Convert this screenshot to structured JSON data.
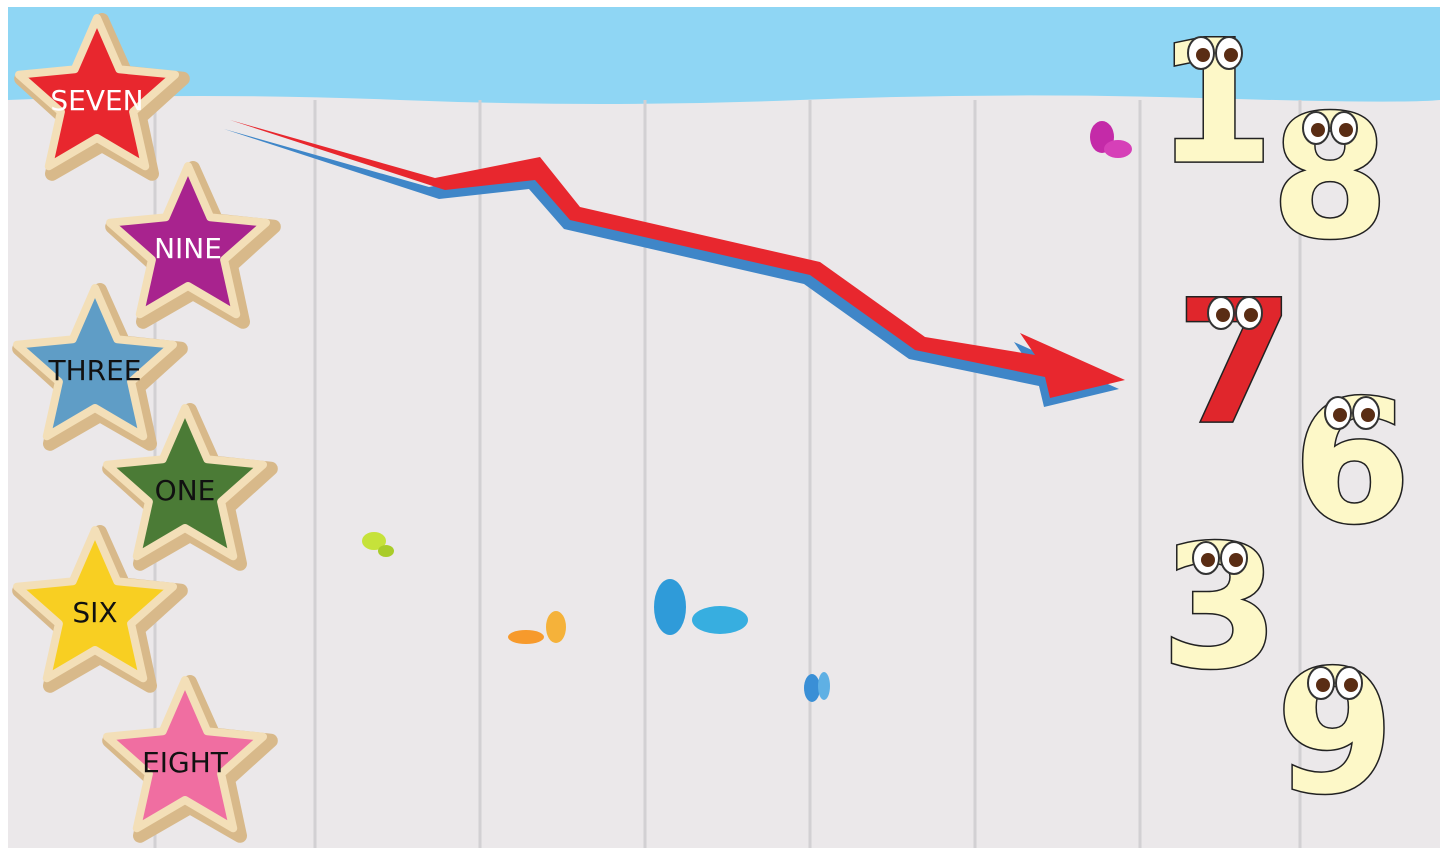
{
  "stars": [
    {
      "label": "SEVEN",
      "color": "#e8272e"
    },
    {
      "label": "NINE",
      "color": "#a8238e"
    },
    {
      "label": "THREE",
      "color": "#5f9dc6"
    },
    {
      "label": "ONE",
      "color": "#4b7b36"
    },
    {
      "label": "SIX",
      "color": "#f8cf22"
    },
    {
      "label": "EIGHT",
      "color": "#f06ea1"
    }
  ],
  "numbers": [
    {
      "label": "1"
    },
    {
      "label": "8"
    },
    {
      "label": "7"
    },
    {
      "label": "6"
    },
    {
      "label": "3"
    },
    {
      "label": "9"
    }
  ]
}
